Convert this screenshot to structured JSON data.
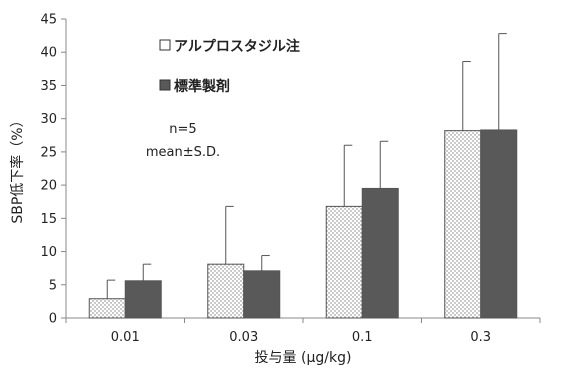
{
  "chart_data": {
    "type": "bar",
    "categories": [
      "0.01",
      "0.03",
      "0.1",
      "0.3"
    ],
    "series": [
      {
        "name": "アルプロスタジル注",
        "values": [
          2.9,
          8.1,
          16.8,
          28.2
        ],
        "error": [
          2.8,
          8.7,
          9.2,
          10.4
        ],
        "pattern": "dotted",
        "color": "#ffffff"
      },
      {
        "name": "標準製剤",
        "values": [
          5.6,
          7.1,
          19.5,
          28.3
        ],
        "error": [
          2.5,
          2.3,
          7.1,
          14.5
        ],
        "pattern": "solid",
        "color": "#595959"
      }
    ],
    "ylabel": "SBP低下率（%）",
    "xlabel": "投与量 (μg/kg)",
    "ylim": [
      0,
      45
    ],
    "yticks": [
      0,
      5,
      10,
      15,
      20,
      25,
      30,
      35,
      40,
      45
    ],
    "grid": false,
    "legend_position": "top-left",
    "annotations": [
      "n=5",
      "mean±S.D."
    ]
  }
}
